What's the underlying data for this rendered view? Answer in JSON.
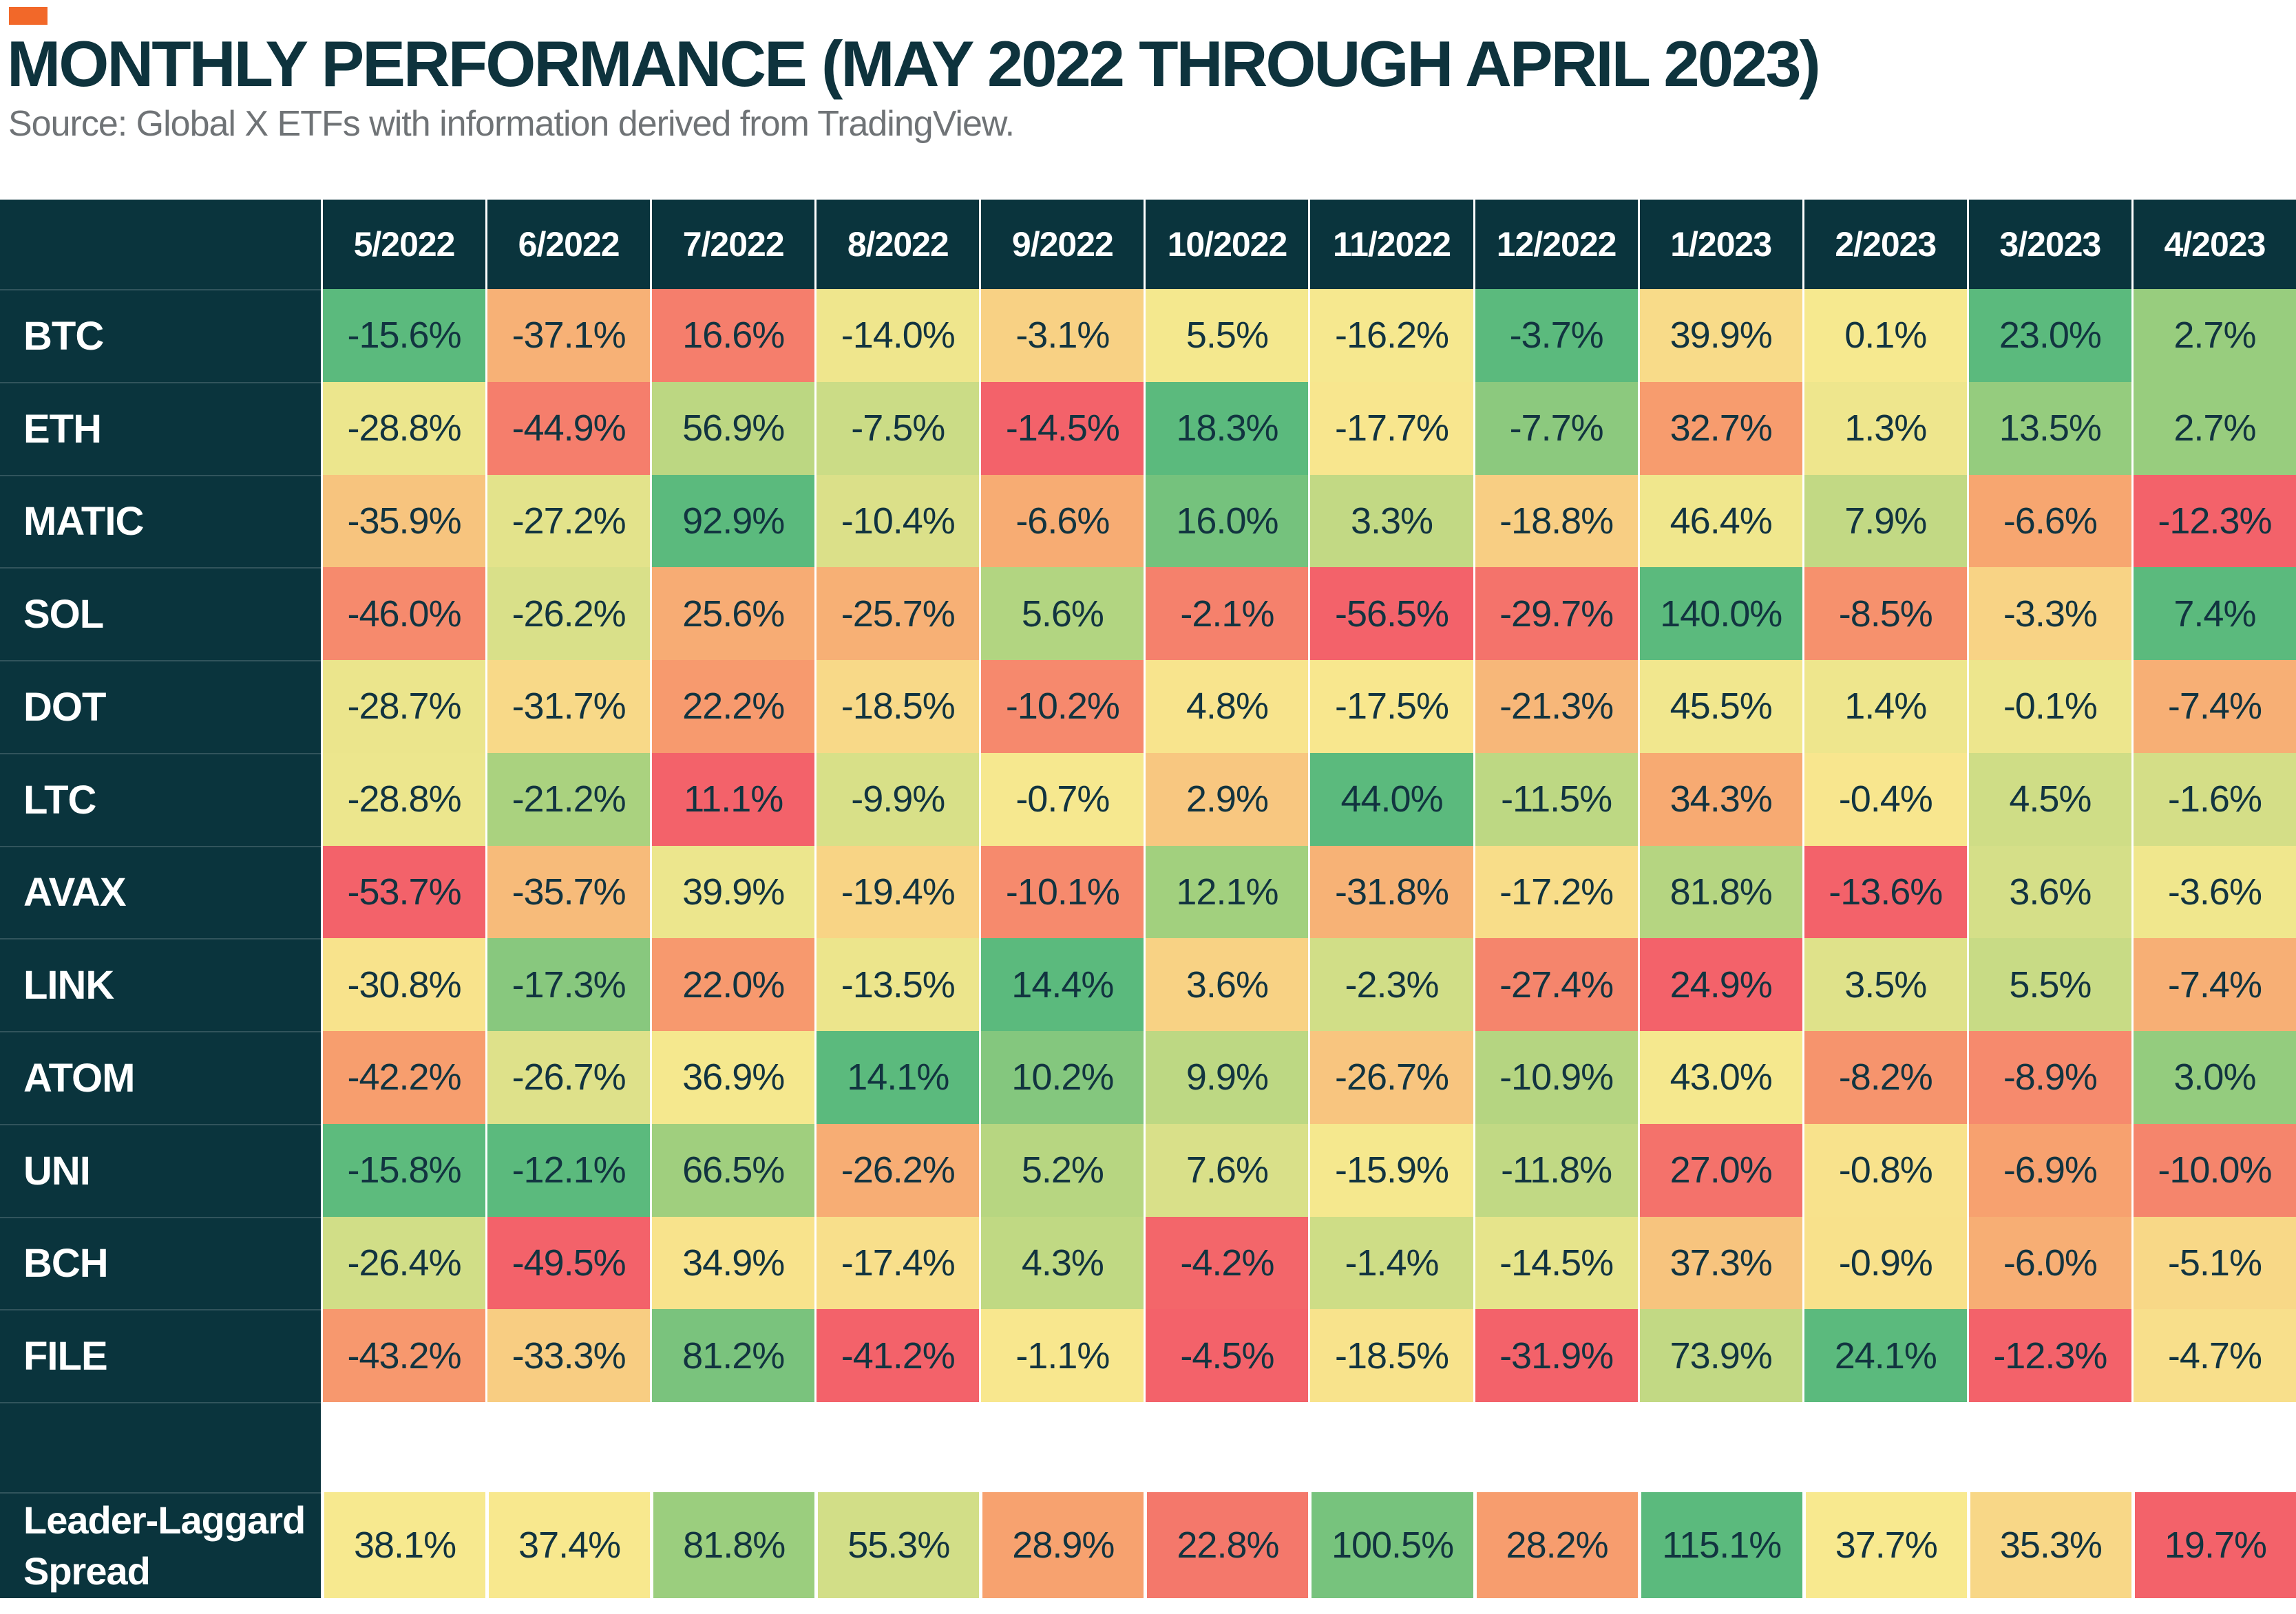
{
  "header": {
    "title": "MONTHLY PERFORMANCE (MAY 2022 THROUGH APRIL 2023)",
    "subtitle": "Source: Global X ETFs with information derived from TradingView."
  },
  "chart_data": {
    "type": "heatmap",
    "title": "MONTHLY PERFORMANCE (MAY 2022 THROUGH APRIL 2023)",
    "subtitle": "Source: Global X ETFs with information derived from TradingView.",
    "value_format": "percent_one_decimal",
    "color_rule": "per month column: column min maps to red, column median to yellow, column max to green; spread row is scaled across its own twelve values",
    "columns": [
      "5/2022",
      "6/2022",
      "7/2022",
      "8/2022",
      "9/2022",
      "10/2022",
      "11/2022",
      "12/2022",
      "1/2023",
      "2/2023",
      "3/2023",
      "4/2023"
    ],
    "rows": [
      {
        "label": "BTC",
        "values": [
          -15.6,
          -37.1,
          16.6,
          -14.0,
          -3.1,
          5.5,
          -16.2,
          -3.7,
          39.9,
          0.1,
          23.0,
          2.7
        ]
      },
      {
        "label": "ETH",
        "values": [
          -28.8,
          -44.9,
          56.9,
          -7.5,
          -14.5,
          18.3,
          -17.7,
          -7.7,
          32.7,
          1.3,
          13.5,
          2.7
        ]
      },
      {
        "label": "MATIC",
        "values": [
          -35.9,
          -27.2,
          92.9,
          -10.4,
          -6.6,
          16.0,
          3.3,
          -18.8,
          46.4,
          7.9,
          -6.6,
          -12.3
        ]
      },
      {
        "label": "SOL",
        "values": [
          -46.0,
          -26.2,
          25.6,
          -25.7,
          5.6,
          -2.1,
          -56.5,
          -29.7,
          140.0,
          -8.5,
          -3.3,
          7.4
        ]
      },
      {
        "label": "DOT",
        "values": [
          -28.7,
          -31.7,
          22.2,
          -18.5,
          -10.2,
          4.8,
          -17.5,
          -21.3,
          45.5,
          1.4,
          -0.1,
          -7.4
        ]
      },
      {
        "label": "LTC",
        "values": [
          -28.8,
          -21.2,
          11.1,
          -9.9,
          -0.7,
          2.9,
          44.0,
          -11.5,
          34.3,
          -0.4,
          4.5,
          -1.6
        ]
      },
      {
        "label": "AVAX",
        "values": [
          -53.7,
          -35.7,
          39.9,
          -19.4,
          -10.1,
          12.1,
          -31.8,
          -17.2,
          81.8,
          -13.6,
          3.6,
          -3.6
        ]
      },
      {
        "label": "LINK",
        "values": [
          -30.8,
          -17.3,
          22.0,
          -13.5,
          14.4,
          3.6,
          -2.3,
          -27.4,
          24.9,
          3.5,
          5.5,
          -7.4
        ]
      },
      {
        "label": "ATOM",
        "values": [
          -42.2,
          -26.7,
          36.9,
          14.1,
          10.2,
          9.9,
          -26.7,
          -10.9,
          43.0,
          -8.2,
          -8.9,
          3.0
        ]
      },
      {
        "label": "UNI",
        "values": [
          -15.8,
          -12.1,
          66.5,
          -26.2,
          5.2,
          7.6,
          -15.9,
          -11.8,
          27.0,
          -0.8,
          -6.9,
          -10.0
        ]
      },
      {
        "label": "BCH",
        "values": [
          -26.4,
          -49.5,
          34.9,
          -17.4,
          4.3,
          -4.2,
          -1.4,
          -14.5,
          37.3,
          -0.9,
          -6.0,
          -5.1
        ]
      },
      {
        "label": "FILE",
        "values": [
          -43.2,
          -33.3,
          81.2,
          -41.2,
          -1.1,
          -4.5,
          -18.5,
          -31.9,
          73.9,
          24.1,
          -12.3,
          -4.7
        ]
      }
    ],
    "spread_row": {
      "label": "Leader-Laggard Spread",
      "label_lines": [
        "Leader-Laggard",
        "Spread"
      ],
      "values": [
        38.1,
        37.4,
        81.8,
        55.3,
        28.9,
        22.8,
        100.5,
        28.2,
        115.1,
        37.7,
        35.3,
        19.7
      ]
    },
    "palette": {
      "red": "#f3626a",
      "orange": "#f7a06e",
      "yellow": "#f8e98f",
      "light_green": "#a6d17e",
      "green": "#5bba7d"
    },
    "colors": {
      "background": "#ffffff",
      "panel": "#0a343d",
      "row_divider": "rgba(255,255,255,0.16)",
      "cell_text": "#123440",
      "header_text": "#ffffff",
      "title_text": "#0e333d",
      "subtitle_text": "#6f7376",
      "accent": "#f26829"
    }
  }
}
